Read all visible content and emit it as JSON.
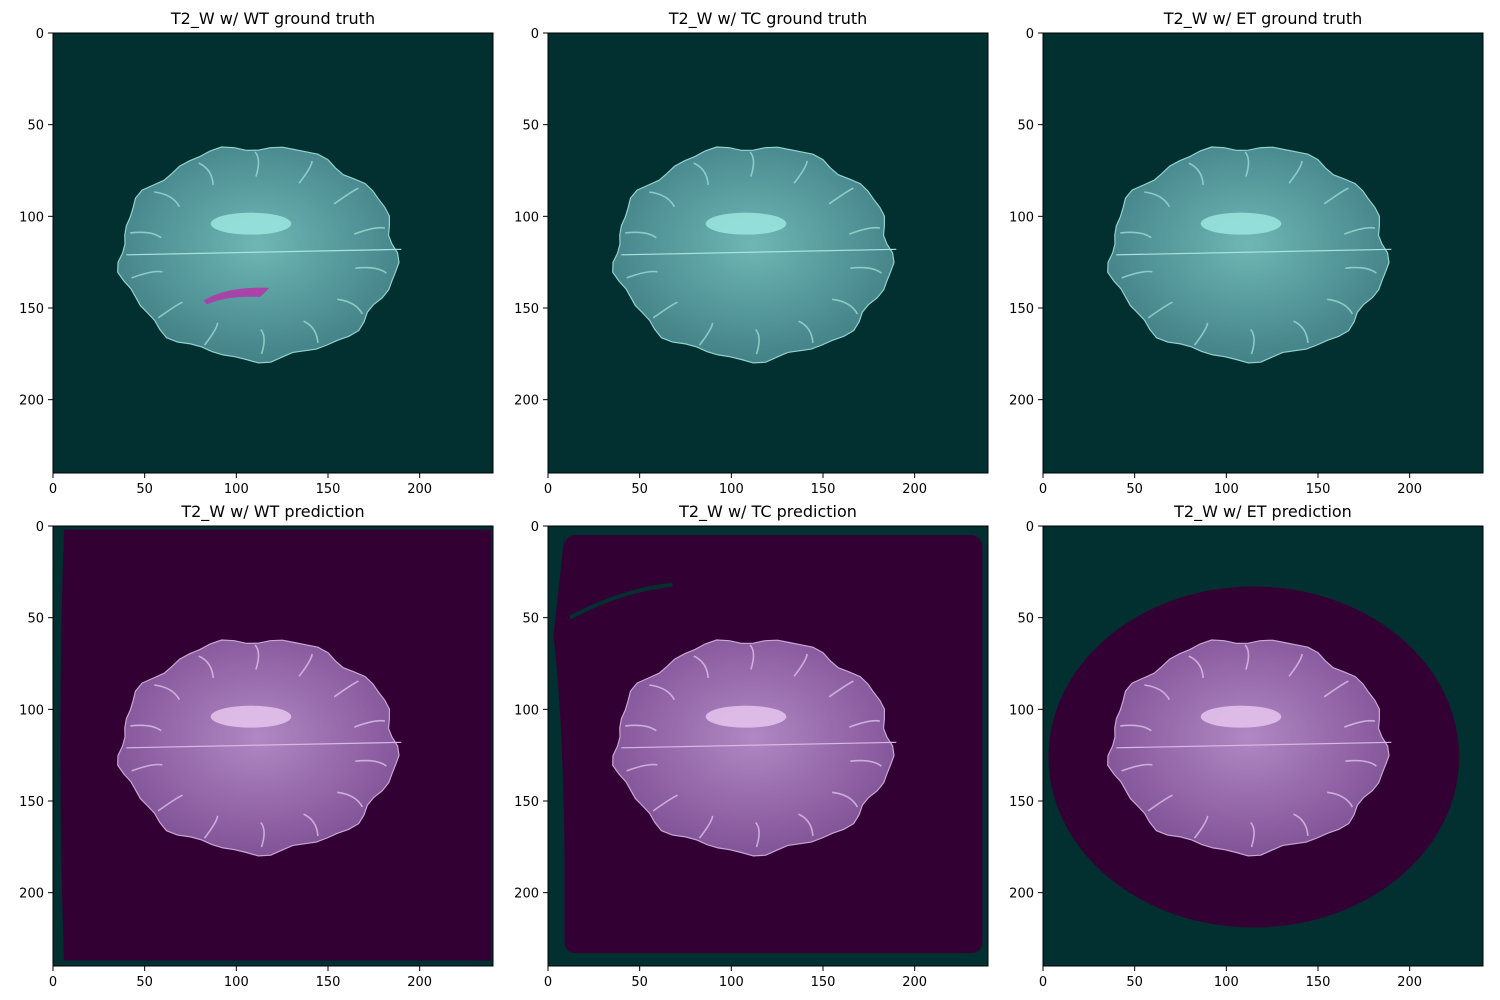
{
  "panels": [
    {
      "title": "T2_W w/ WT ground truth",
      "overlay": "teal",
      "mask": "wt_gt"
    },
    {
      "title": "T2_W w/ TC ground truth",
      "overlay": "teal",
      "mask": "none"
    },
    {
      "title": "T2_W w/ ET ground truth",
      "overlay": "teal",
      "mask": "none"
    },
    {
      "title": "T2_W w/ WT prediction",
      "overlay": "purple",
      "mask": "wt_pred"
    },
    {
      "title": "T2_W w/ TC prediction",
      "overlay": "purple",
      "mask": "tc_pred"
    },
    {
      "title": "T2_W w/ ET prediction",
      "overlay": "purple",
      "mask": "et_pred"
    }
  ],
  "axes": {
    "x_ticks": [
      "0",
      "50",
      "100",
      "150",
      "200"
    ],
    "y_ticks": [
      "0",
      "50",
      "100",
      "150",
      "200"
    ]
  },
  "colors": {
    "teal_background": "#022f2f",
    "purple_background": "#330033",
    "teal_brain": "#4a8c90",
    "purple_brain": "#8a5a9e",
    "tumor_magenta": "#b03aa8"
  }
}
